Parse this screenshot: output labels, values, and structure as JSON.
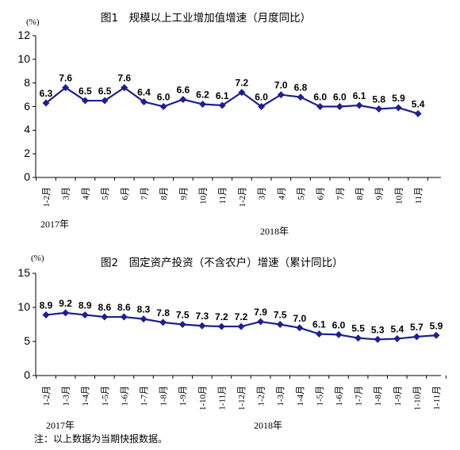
{
  "chart_data": [
    {
      "type": "line",
      "title": "图1　规模以上工业增加值增速（月度同比）",
      "unit": "(%)",
      "ylim": [
        0,
        12
      ],
      "yticks": [
        "0",
        "2",
        "4",
        "6",
        "8",
        "10",
        "12"
      ],
      "categories": [
        "1-2月",
        "3月",
        "4月",
        "5月",
        "6月",
        "7月",
        "8月",
        "9月",
        "10月",
        "11月",
        "1-2月",
        "3月",
        "4月",
        "5月",
        "6月",
        "7月",
        "8月",
        "9月",
        "10月",
        "11月"
      ],
      "year_labels": [
        "2017年",
        "2018年"
      ],
      "series": [
        {
          "values": [
            6.3,
            7.6,
            6.5,
            6.5,
            7.6,
            6.4,
            6.0,
            6.6,
            6.2,
            6.1,
            7.2,
            6.0,
            7.0,
            6.8,
            6.0,
            6.0,
            6.1,
            5.8,
            5.9,
            5.4
          ],
          "labels": [
            "6.3",
            "7.6",
            "6.5",
            "6.5",
            "7.6",
            "6.4",
            "6.0",
            "6.6",
            "6.2",
            "6.1",
            "7.2",
            "6.0",
            "7.0",
            "6.8",
            "6.0",
            "6.0",
            "6.1",
            "5.8",
            "5.9",
            "5.4"
          ]
        }
      ],
      "grid": false,
      "color": "#1f1f8f"
    },
    {
      "type": "line",
      "title": "图2　固定资产投资（不含农户）增速（累计同比）",
      "unit": "(%)",
      "ylim": [
        0,
        15
      ],
      "yticks": [
        "0",
        "5",
        "10",
        "15"
      ],
      "categories": [
        "1-2月",
        "1-3月",
        "1-4月",
        "1-5月",
        "1-6月",
        "1-7月",
        "1-8月",
        "1-9月",
        "1-10月",
        "1-11月",
        "1-12月",
        "1-2月",
        "1-3月",
        "1-4月",
        "1-5月",
        "1-6月",
        "1-7月",
        "1-8月",
        "1-9月",
        "1-10月",
        "1-11月"
      ],
      "year_labels": [
        "2017年",
        "2018年"
      ],
      "series": [
        {
          "values": [
            8.9,
            9.2,
            8.9,
            8.6,
            8.6,
            8.3,
            7.8,
            7.5,
            7.3,
            7.2,
            7.2,
            7.9,
            7.5,
            7.0,
            6.1,
            6.0,
            5.5,
            5.3,
            5.4,
            5.7,
            5.9
          ],
          "labels": [
            "8.9",
            "9.2",
            "8.9",
            "8.6",
            "8.6",
            "8.3",
            "7.8",
            "7.5",
            "7.3",
            "7.2",
            "7.2",
            "7.9",
            "7.5",
            "7.0",
            "6.1",
            "6.0",
            "5.5",
            "5.3",
            "5.4",
            "5.7",
            "5.9"
          ]
        }
      ],
      "grid": false,
      "color": "#1f1f8f"
    }
  ],
  "note": "注：以上数据为当期快报数据。"
}
